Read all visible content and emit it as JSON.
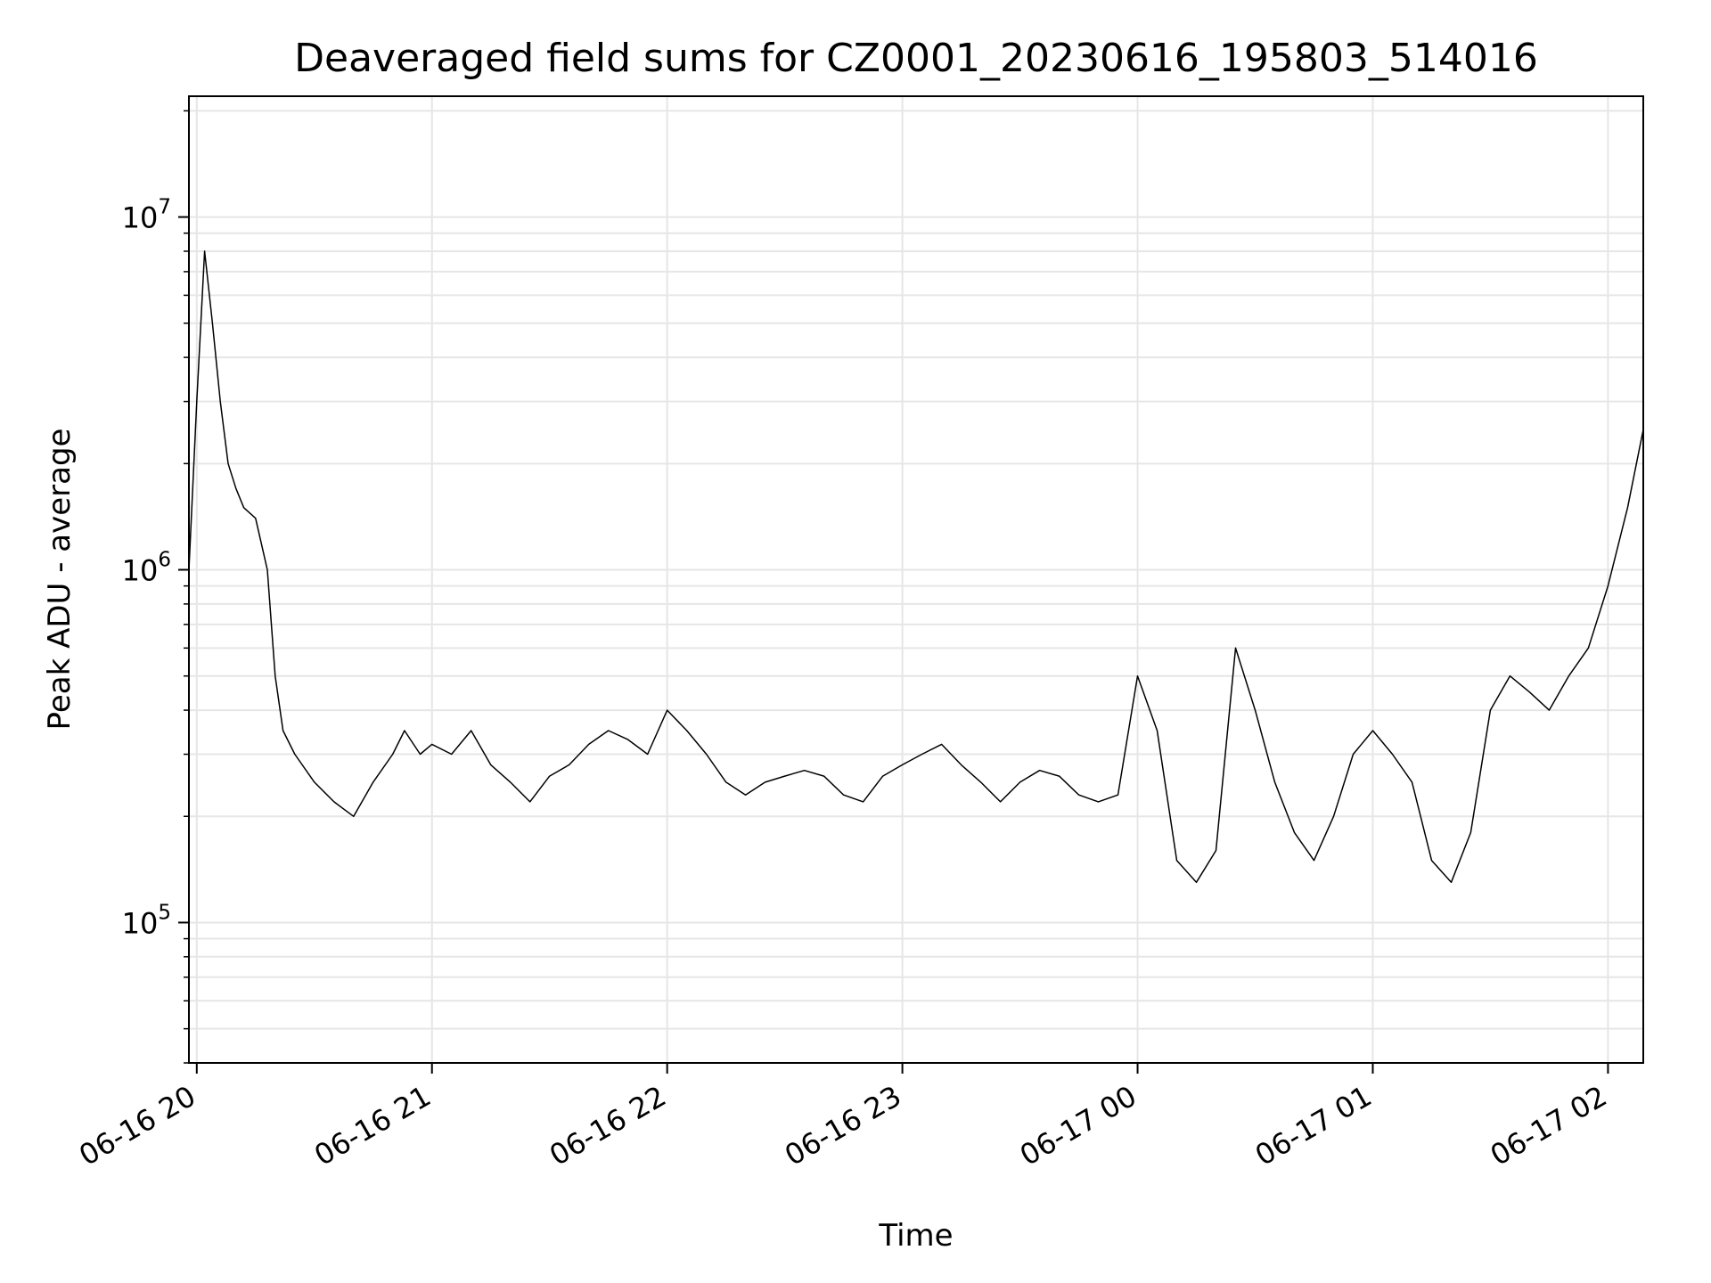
{
  "chart_data": {
    "type": "line",
    "title": "Deaveraged field sums for CZ0001_20230616_195803_514016",
    "xlabel": "Time",
    "ylabel": "Peak ADU - average",
    "yscale": "log",
    "ylim": [
      40000,
      22000000
    ],
    "xlim": [
      "2023-06-16T19:58:00",
      "2023-06-17T02:09:00"
    ],
    "x_ticks": [
      "06-16 20",
      "06-16 21",
      "06-16 22",
      "06-16 23",
      "06-17 00",
      "06-17 01",
      "06-17 02"
    ],
    "y_ticks": [
      {
        "base": "10",
        "exp": "5"
      },
      {
        "base": "10",
        "exp": "6"
      },
      {
        "base": "10",
        "exp": "7"
      }
    ],
    "grid": true,
    "legend": "none",
    "line_color": "#000000",
    "series": [
      {
        "x": [
          "2023-06-16T19:58:00",
          "2023-06-16T20:00:00",
          "2023-06-16T20:02:00",
          "2023-06-16T20:04:00",
          "2023-06-16T20:06:00",
          "2023-06-16T20:08:00",
          "2023-06-16T20:10:00",
          "2023-06-16T20:12:00",
          "2023-06-16T20:15:00",
          "2023-06-16T20:18:00",
          "2023-06-16T20:20:00",
          "2023-06-16T20:22:00",
          "2023-06-16T20:25:00",
          "2023-06-16T20:30:00",
          "2023-06-16T20:35:00",
          "2023-06-16T20:40:00",
          "2023-06-16T20:45:00",
          "2023-06-16T20:50:00",
          "2023-06-16T20:53:00",
          "2023-06-16T20:57:00",
          "2023-06-16T21:00:00",
          "2023-06-16T21:05:00",
          "2023-06-16T21:10:00",
          "2023-06-16T21:15:00",
          "2023-06-16T21:20:00",
          "2023-06-16T21:25:00",
          "2023-06-16T21:30:00",
          "2023-06-16T21:35:00",
          "2023-06-16T21:40:00",
          "2023-06-16T21:45:00",
          "2023-06-16T21:50:00",
          "2023-06-16T21:55:00",
          "2023-06-16T22:00:00",
          "2023-06-16T22:05:00",
          "2023-06-16T22:10:00",
          "2023-06-16T22:15:00",
          "2023-06-16T22:20:00",
          "2023-06-16T22:25:00",
          "2023-06-16T22:30:00",
          "2023-06-16T22:35:00",
          "2023-06-16T22:40:00",
          "2023-06-16T22:45:00",
          "2023-06-16T22:50:00",
          "2023-06-16T22:55:00",
          "2023-06-16T23:00:00",
          "2023-06-16T23:05:00",
          "2023-06-16T23:10:00",
          "2023-06-16T23:15:00",
          "2023-06-16T23:20:00",
          "2023-06-16T23:25:00",
          "2023-06-16T23:30:00",
          "2023-06-16T23:35:00",
          "2023-06-16T23:40:00",
          "2023-06-16T23:45:00",
          "2023-06-16T23:50:00",
          "2023-06-16T23:55:00",
          "2023-06-17T00:00:00",
          "2023-06-17T00:05:00",
          "2023-06-17T00:10:00",
          "2023-06-17T00:15:00",
          "2023-06-17T00:20:00",
          "2023-06-17T00:25:00",
          "2023-06-17T00:30:00",
          "2023-06-17T00:35:00",
          "2023-06-17T00:40:00",
          "2023-06-17T00:45:00",
          "2023-06-17T00:50:00",
          "2023-06-17T00:55:00",
          "2023-06-17T01:00:00",
          "2023-06-17T01:05:00",
          "2023-06-17T01:10:00",
          "2023-06-17T01:15:00",
          "2023-06-17T01:20:00",
          "2023-06-17T01:25:00",
          "2023-06-17T01:30:00",
          "2023-06-17T01:35:00",
          "2023-06-17T01:40:00",
          "2023-06-17T01:45:00",
          "2023-06-17T01:50:00",
          "2023-06-17T01:55:00",
          "2023-06-17T02:00:00",
          "2023-06-17T02:05:00",
          "2023-06-17T02:09:00"
        ],
        "y": [
          1000000,
          3000000,
          8000000,
          5000000,
          3000000,
          2000000,
          1700000,
          1500000,
          1400000,
          1000000,
          500000,
          350000,
          300000,
          250000,
          220000,
          200000,
          250000,
          300000,
          350000,
          300000,
          320000,
          300000,
          350000,
          280000,
          250000,
          220000,
          260000,
          280000,
          320000,
          350000,
          330000,
          300000,
          400000,
          350000,
          300000,
          250000,
          230000,
          250000,
          260000,
          270000,
          260000,
          230000,
          220000,
          260000,
          280000,
          300000,
          320000,
          280000,
          250000,
          220000,
          250000,
          270000,
          260000,
          230000,
          220000,
          230000,
          500000,
          350000,
          150000,
          130000,
          160000,
          600000,
          400000,
          250000,
          180000,
          150000,
          200000,
          300000,
          350000,
          300000,
          250000,
          150000,
          130000,
          180000,
          400000,
          500000,
          450000,
          400000,
          500000,
          600000,
          900000,
          1500000,
          2500000
        ]
      }
    ]
  }
}
